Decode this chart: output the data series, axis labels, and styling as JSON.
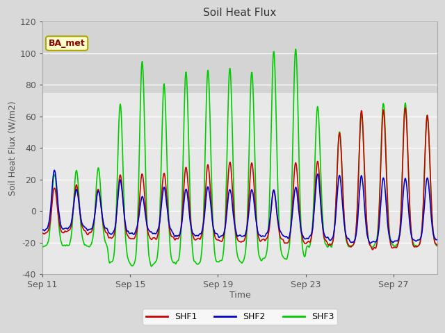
{
  "title": "Soil Heat Flux",
  "xlabel": "Time",
  "ylabel": "Soil Heat Flux (W/m2)",
  "ylim": [
    -40,
    120
  ],
  "yticks": [
    -40,
    -20,
    0,
    20,
    40,
    60,
    80,
    100,
    120
  ],
  "xtick_labels": [
    "Sep 11",
    "Sep 15",
    "Sep 19",
    "Sep 23",
    "Sep 27"
  ],
  "legend_label": "BA_met",
  "series_labels": [
    "SHF1",
    "SHF2",
    "SHF3"
  ],
  "series_colors": [
    "#cc0000",
    "#0000cc",
    "#00cc00"
  ],
  "bg_color": "#d9d9d9",
  "plot_bg_lower": "#e8e8e8",
  "plot_bg_upper": "#d0d0d0",
  "grid_color": "#ffffff",
  "n_days": 18,
  "figsize": [
    6.4,
    4.8
  ],
  "dpi": 100
}
